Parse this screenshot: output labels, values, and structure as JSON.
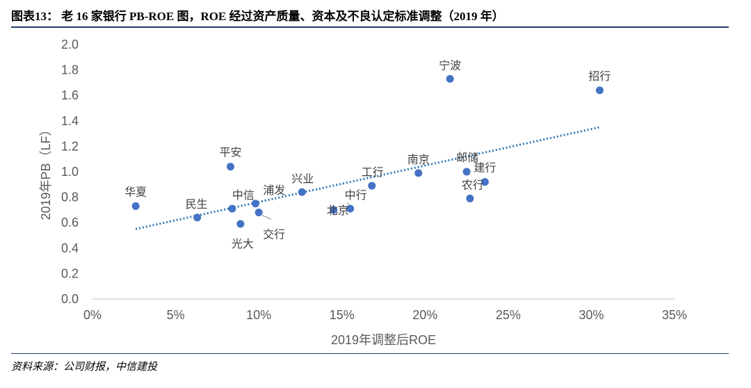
{
  "figure": {
    "title": "图表13： 老 16 家银行 PB-ROE 图，ROE 经过资产质量、资本及不良认定标准调整（2019 年）",
    "source": "资料来源：公司财报，中信建投"
  },
  "chart_data": {
    "type": "scatter",
    "xlabel": "2019年调整后ROE",
    "ylabel": "2019年PB（LF）",
    "xlim": [
      0,
      0.35
    ],
    "ylim": [
      0,
      2.0
    ],
    "xticks": [
      0,
      0.05,
      0.1,
      0.15,
      0.2,
      0.25,
      0.3,
      0.35
    ],
    "xtick_labels": [
      "0%",
      "5%",
      "10%",
      "15%",
      "20%",
      "25%",
      "30%",
      "35%"
    ],
    "yticks": [
      0.0,
      0.2,
      0.4,
      0.6,
      0.8,
      1.0,
      1.2,
      1.4,
      1.6,
      1.8,
      2.0
    ],
    "ytick_labels": [
      "0.0",
      "0.2",
      "0.4",
      "0.6",
      "0.8",
      "1.0",
      "1.2",
      "1.4",
      "1.6",
      "1.8",
      "2.0"
    ],
    "grid": false,
    "legend": "none",
    "point_color": "#4472c4",
    "trendline": {
      "style": "dotted",
      "color": "#2e75b6",
      "x": [
        0.026,
        0.305
      ],
      "y": [
        0.55,
        1.35
      ]
    },
    "points": [
      {
        "label": "华夏",
        "x": 0.026,
        "y": 0.73
      },
      {
        "label": "民生",
        "x": 0.063,
        "y": 0.64
      },
      {
        "label": "平安",
        "x": 0.083,
        "y": 1.04
      },
      {
        "label": "中信",
        "x": 0.084,
        "y": 0.71
      },
      {
        "label": "光大",
        "x": 0.089,
        "y": 0.59
      },
      {
        "label": "浦发",
        "x": 0.098,
        "y": 0.75
      },
      {
        "label": "交行",
        "x": 0.1,
        "y": 0.68
      },
      {
        "label": "兴业",
        "x": 0.126,
        "y": 0.84
      },
      {
        "label": "北京",
        "x": 0.145,
        "y": 0.7
      },
      {
        "label": "中行",
        "x": 0.155,
        "y": 0.71
      },
      {
        "label": "工行",
        "x": 0.168,
        "y": 0.89
      },
      {
        "label": "南京",
        "x": 0.196,
        "y": 0.99
      },
      {
        "label": "宁波",
        "x": 0.215,
        "y": 1.73
      },
      {
        "label": "邮储",
        "x": 0.225,
        "y": 1.0
      },
      {
        "label": "农行",
        "x": 0.227,
        "y": 0.79
      },
      {
        "label": "建行",
        "x": 0.236,
        "y": 0.92
      },
      {
        "label": "招行",
        "x": 0.305,
        "y": 1.64
      }
    ]
  }
}
